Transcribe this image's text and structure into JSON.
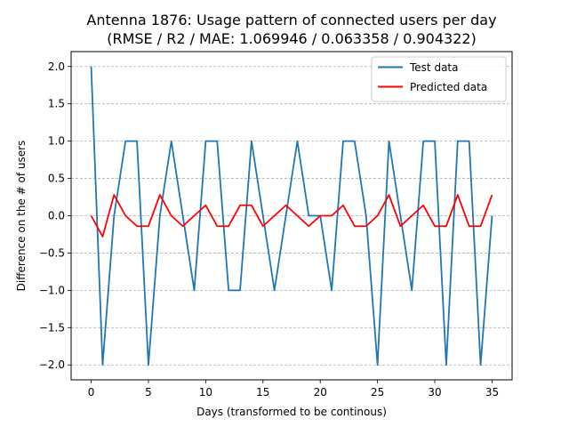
{
  "chart_data": {
    "type": "line",
    "title": "Antenna 1876: Usage pattern of connected users per day",
    "subtitle": "(RMSE / R2 / MAE: 1.069946 / 0.063358 / 0.904322)",
    "xlabel": "Days (transformed to be continous)",
    "ylabel": "Difference on the # of users",
    "xlim": [
      -1.75,
      36.75
    ],
    "ylim": [
      -2.2,
      2.2
    ],
    "x_ticks": [
      0,
      5,
      10,
      15,
      20,
      25,
      30,
      35
    ],
    "y_ticks": [
      -2.0,
      -1.5,
      -1.0,
      -0.5,
      0.0,
      0.5,
      1.0,
      1.5,
      2.0
    ],
    "x_tick_labels": [
      "0",
      "5",
      "10",
      "15",
      "20",
      "25",
      "30",
      "35"
    ],
    "y_tick_labels": [
      "−2.0",
      "−1.5",
      "−1.0",
      "−0.5",
      "0.0",
      "0.5",
      "1.0",
      "1.5",
      "2.0"
    ],
    "grid": "horizontal dashed",
    "legend_position": "upper right",
    "x": [
      0,
      1,
      2,
      3,
      4,
      5,
      6,
      7,
      8,
      9,
      10,
      11,
      12,
      13,
      14,
      15,
      16,
      17,
      18,
      19,
      20,
      21,
      22,
      23,
      24,
      25,
      26,
      27,
      28,
      29,
      30,
      31,
      32,
      33,
      34,
      35
    ],
    "series": [
      {
        "name": "Test data",
        "color": "#1f77b4",
        "values": [
          2,
          -2,
          0,
          1,
          1,
          -2,
          0,
          1,
          0,
          -1,
          1,
          1,
          -1,
          -1,
          1,
          0,
          -1,
          0,
          1,
          0,
          0,
          -1,
          1,
          1,
          0,
          -2,
          1,
          0,
          -1,
          1,
          1,
          -2,
          1,
          1,
          -2,
          0
        ]
      },
      {
        "name": "Predicted data",
        "color": "#ff0000",
        "values": [
          0,
          -0.28,
          0.28,
          0,
          -0.14,
          -0.14,
          0.28,
          0,
          -0.14,
          0,
          0.14,
          -0.14,
          -0.14,
          0.14,
          0.14,
          -0.14,
          0,
          0.14,
          0,
          -0.14,
          0,
          0,
          0.14,
          -0.14,
          -0.14,
          0,
          0.28,
          -0.14,
          0,
          0.14,
          -0.14,
          -0.14,
          0.28,
          -0.14,
          -0.14,
          0.28
        ]
      }
    ]
  }
}
